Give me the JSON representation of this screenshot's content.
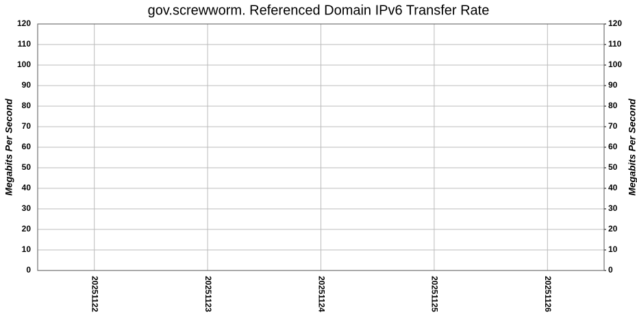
{
  "chart_data": {
    "type": "bar",
    "title": "gov.screwworm. Referenced Domain IPv6 Transfer Rate",
    "y_label": "Megabits Per Second",
    "y2_label": "Megabits Per Second",
    "categories": [
      "20251122",
      "20251123",
      "20251124",
      "20251125",
      "20251126"
    ],
    "values": [
      0,
      0,
      0,
      0,
      0
    ],
    "color": "#000080",
    "ylim": [
      0,
      120
    ],
    "yticks": [
      0,
      10,
      20,
      30,
      40,
      50,
      60,
      70,
      80,
      90,
      100,
      110,
      120
    ],
    "y2lim": [
      0,
      120
    ],
    "y2ticks": [
      0,
      10,
      20,
      30,
      40,
      50,
      60,
      70,
      80,
      90,
      100,
      110,
      120
    ],
    "grid": true
  }
}
